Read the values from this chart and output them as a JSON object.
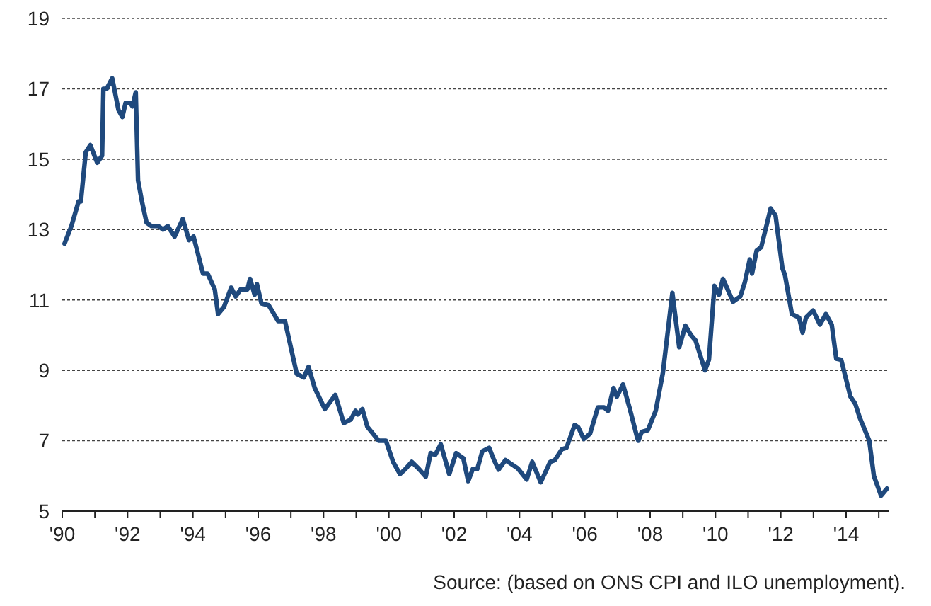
{
  "chart_data": {
    "type": "line",
    "xlim": [
      1990,
      2015.3
    ],
    "ylim": [
      5,
      19
    ],
    "yticks": [
      5,
      7,
      9,
      11,
      13,
      15,
      17,
      19
    ],
    "xticks": [
      {
        "value": 1990,
        "label": "'90"
      },
      {
        "value": 1991,
        "label": null
      },
      {
        "value": 1992,
        "label": "'92"
      },
      {
        "value": 1993,
        "label": null
      },
      {
        "value": 1994,
        "label": "'94"
      },
      {
        "value": 1995,
        "label": null
      },
      {
        "value": 1996,
        "label": "'96"
      },
      {
        "value": 1997,
        "label": null
      },
      {
        "value": 1998,
        "label": "'98"
      },
      {
        "value": 1999,
        "label": null
      },
      {
        "value": 2000,
        "label": "'00"
      },
      {
        "value": 2001,
        "label": null
      },
      {
        "value": 2002,
        "label": "'02"
      },
      {
        "value": 2003,
        "label": null
      },
      {
        "value": 2004,
        "label": "'04"
      },
      {
        "value": 2005,
        "label": null
      },
      {
        "value": 2006,
        "label": "'06"
      },
      {
        "value": 2007,
        "label": null
      },
      {
        "value": 2008,
        "label": "'08"
      },
      {
        "value": 2009,
        "label": null
      },
      {
        "value": 2010,
        "label": "'10"
      },
      {
        "value": 2011,
        "label": null
      },
      {
        "value": 2012,
        "label": "'12"
      },
      {
        "value": 2013,
        "label": null
      },
      {
        "value": 2014,
        "label": "'14"
      },
      {
        "value": 2015,
        "label": null
      }
    ],
    "grid": "y",
    "line_style": "solid",
    "marker": "none",
    "annotations": [
      "Source: (based on ONS CPI and ILO unemployment)."
    ],
    "x": [
      1990.07,
      1990.28,
      1990.5,
      1990.57,
      1990.72,
      1990.86,
      1991.07,
      1991.22,
      1991.26,
      1991.36,
      1991.53,
      1991.72,
      1991.84,
      1991.94,
      1992.08,
      1992.15,
      1992.25,
      1992.32,
      1992.44,
      1992.58,
      1992.73,
      1992.94,
      1993.09,
      1993.23,
      1993.44,
      1993.69,
      1993.88,
      1994.02,
      1994.31,
      1994.45,
      1994.67,
      1994.77,
      1994.95,
      1995.17,
      1995.31,
      1995.46,
      1995.67,
      1995.75,
      1995.89,
      1995.96,
      1996.1,
      1996.32,
      1996.61,
      1996.82,
      1997.18,
      1997.4,
      1997.54,
      1997.73,
      1998.04,
      1998.36,
      1998.62,
      1998.83,
      1998.98,
      1999.05,
      1999.19,
      1999.34,
      1999.69,
      1999.91,
      2000.13,
      2000.34,
      2000.51,
      2000.7,
      2000.92,
      2001.13,
      2001.28,
      2001.42,
      2001.59,
      2001.85,
      2002.06,
      2002.28,
      2002.43,
      2002.57,
      2002.71,
      2002.86,
      2003.07,
      2003.22,
      2003.36,
      2003.57,
      2003.94,
      2004.22,
      2004.39,
      2004.65,
      2004.94,
      2005.08,
      2005.3,
      2005.44,
      2005.69,
      2005.8,
      2005.97,
      2006.16,
      2006.4,
      2006.59,
      2006.71,
      2006.88,
      2006.98,
      2007.17,
      2007.38,
      2007.6,
      2007.64,
      2007.74,
      2007.93,
      2008.17,
      2008.39,
      2008.68,
      2008.89,
      2009.08,
      2009.25,
      2009.39,
      2009.68,
      2009.8,
      2009.97,
      2010.11,
      2010.23,
      2010.54,
      2010.76,
      2010.9,
      2011.05,
      2011.12,
      2011.26,
      2011.4,
      2011.69,
      2011.84,
      2012.05,
      2012.13,
      2012.34,
      2012.56,
      2012.67,
      2012.77,
      2012.99,
      2013.2,
      2013.38,
      2013.56,
      2013.7,
      2013.85,
      2014.13,
      2014.28,
      2014.42,
      2014.71,
      2014.85,
      2015.07,
      2015.25
    ],
    "series": [
      {
        "color": "#1f497d",
        "values": [
          12.6,
          13.1,
          13.8,
          13.8,
          15.2,
          15.4,
          14.9,
          15.1,
          17.0,
          17.0,
          17.3,
          16.4,
          16.2,
          16.6,
          16.6,
          16.5,
          16.9,
          14.4,
          13.8,
          13.2,
          13.1,
          13.1,
          13.0,
          13.1,
          12.8,
          13.3,
          12.7,
          12.8,
          11.75,
          11.75,
          11.3,
          10.6,
          10.8,
          11.35,
          11.1,
          11.3,
          11.3,
          11.6,
          11.15,
          11.45,
          10.9,
          10.85,
          10.4,
          10.4,
          8.9,
          8.8,
          9.1,
          8.5,
          7.9,
          8.3,
          7.5,
          7.6,
          7.85,
          7.75,
          7.9,
          7.4,
          7.0,
          7.0,
          6.4,
          6.05,
          6.2,
          6.4,
          6.2,
          5.98,
          6.65,
          6.6,
          6.9,
          6.05,
          6.65,
          6.5,
          5.85,
          6.2,
          6.2,
          6.7,
          6.8,
          6.45,
          6.18,
          6.45,
          6.22,
          5.9,
          6.4,
          5.82,
          6.4,
          6.45,
          6.76,
          6.8,
          7.45,
          7.38,
          7.05,
          7.2,
          7.95,
          7.95,
          7.85,
          8.5,
          8.25,
          8.6,
          7.9,
          7.1,
          7.0,
          7.25,
          7.3,
          7.85,
          8.93,
          11.2,
          9.66,
          10.27,
          10.0,
          9.85,
          9.0,
          9.3,
          11.4,
          11.15,
          11.6,
          10.95,
          11.1,
          11.5,
          12.15,
          11.75,
          12.4,
          12.5,
          13.6,
          13.4,
          11.9,
          11.7,
          10.6,
          10.5,
          10.07,
          10.5,
          10.7,
          10.3,
          10.6,
          10.3,
          9.33,
          9.3,
          8.26,
          8.05,
          7.65,
          7.0,
          6.0,
          5.44,
          5.64
        ]
      }
    ]
  }
}
